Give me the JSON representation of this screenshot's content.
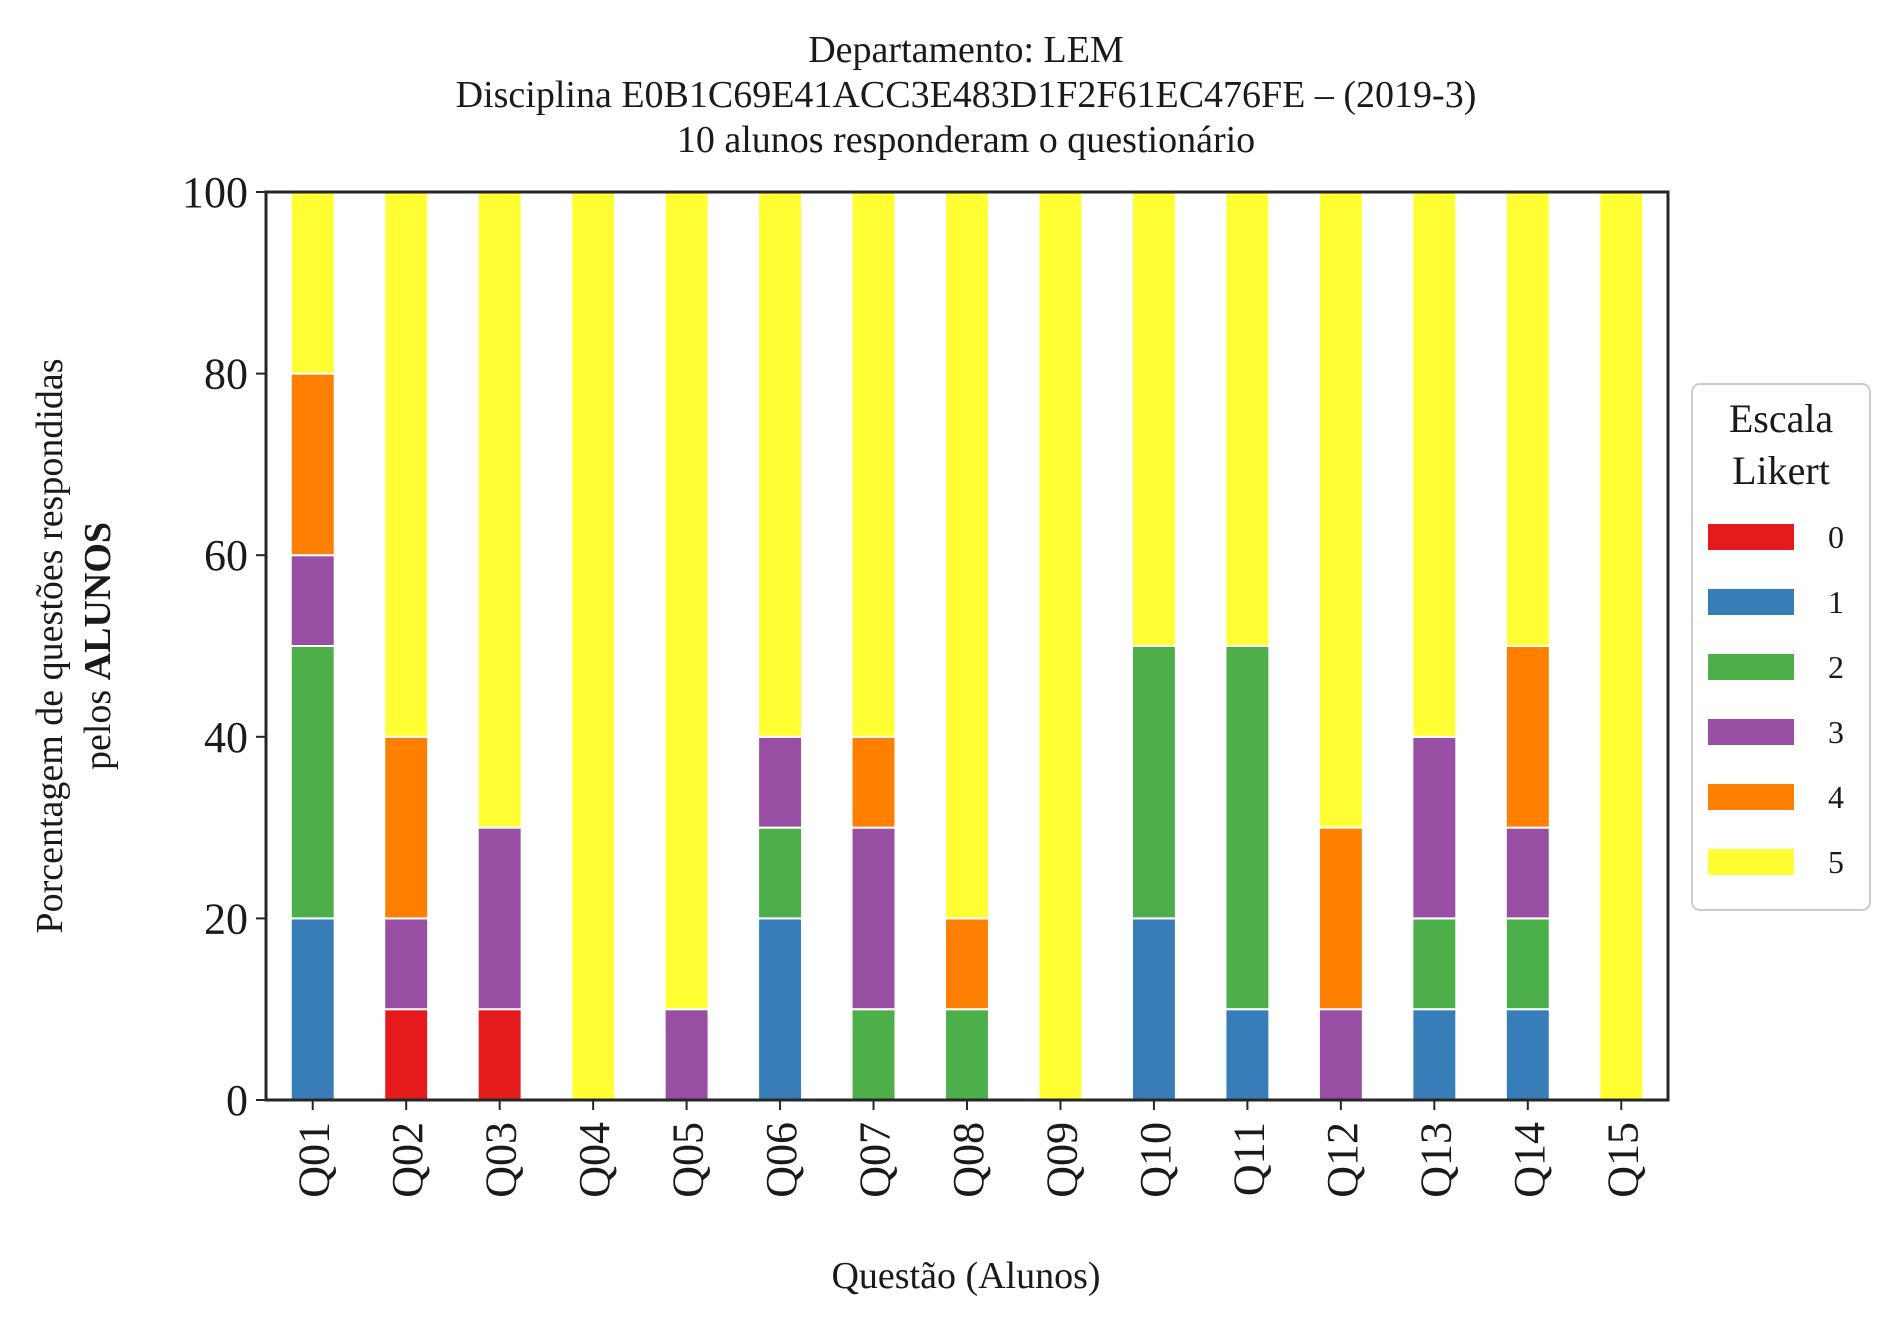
{
  "chart_data": {
    "type": "bar",
    "stacked": true,
    "title_lines": [
      "Departamento: LEM",
      "Disciplina E0B1C69E41ACC3E483D1F2F61EC476FE – (2019-3)",
      "10 alunos responderam o questionário"
    ],
    "xlabel": "Questão (Alunos)",
    "ylabel_line1": "Porcentagem de questões respondidas",
    "ylabel_line2_prefix": "pelos ",
    "ylabel_line2_bold": "ALUNOS",
    "ylim": [
      0,
      100
    ],
    "yticks": [
      0,
      20,
      40,
      60,
      80,
      100
    ],
    "grid": false,
    "legend": {
      "title_lines": [
        "Escala",
        "Likert"
      ],
      "position": "right"
    },
    "categories": [
      "Q01",
      "Q02",
      "Q03",
      "Q04",
      "Q05",
      "Q06",
      "Q07",
      "Q08",
      "Q09",
      "Q10",
      "Q11",
      "Q12",
      "Q13",
      "Q14",
      "Q15"
    ],
    "series": [
      {
        "name": "0",
        "color": "#e41a1c",
        "values": [
          0,
          10,
          10,
          0,
          0,
          0,
          0,
          0,
          0,
          0,
          0,
          0,
          0,
          0,
          0
        ]
      },
      {
        "name": "1",
        "color": "#377eb8",
        "values": [
          20,
          0,
          0,
          0,
          0,
          20,
          0,
          0,
          0,
          20,
          10,
          0,
          10,
          10,
          0
        ]
      },
      {
        "name": "2",
        "color": "#4daf4a",
        "values": [
          30,
          0,
          0,
          0,
          0,
          10,
          10,
          10,
          0,
          30,
          40,
          0,
          10,
          10,
          0
        ]
      },
      {
        "name": "3",
        "color": "#984ea3",
        "values": [
          10,
          10,
          20,
          0,
          10,
          10,
          20,
          0,
          0,
          0,
          0,
          10,
          20,
          10,
          0
        ]
      },
      {
        "name": "4",
        "color": "#ff7f00",
        "values": [
          20,
          20,
          0,
          0,
          0,
          0,
          10,
          10,
          0,
          0,
          0,
          20,
          0,
          20,
          0
        ]
      },
      {
        "name": "5",
        "color": "#ffff33",
        "values": [
          20,
          60,
          70,
          100,
          90,
          60,
          60,
          80,
          100,
          50,
          50,
          70,
          60,
          50,
          100
        ]
      }
    ]
  }
}
